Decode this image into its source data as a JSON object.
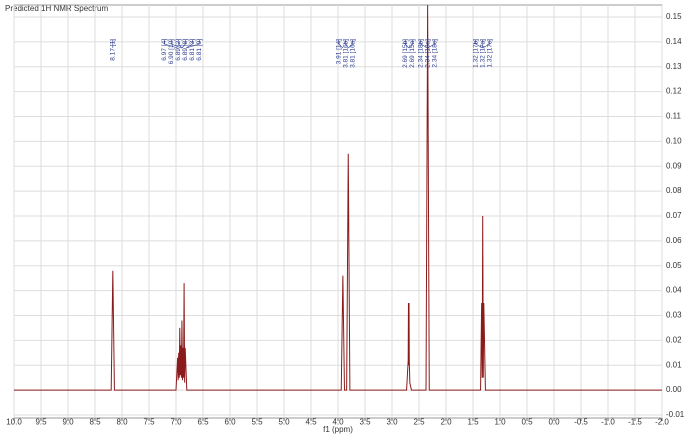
{
  "chart_data": {
    "type": "line",
    "title": "Predicted 1H NMR Spectrum",
    "xlabel": "f1 (ppm)",
    "xlim": [
      10,
      -2
    ],
    "ylim": [
      -0.0112,
      0.1548
    ],
    "xticks": [
      {
        "value": 10,
        "label": "10.0"
      },
      9.5,
      {
        "value": 9,
        "label": "9.0"
      },
      8.5,
      {
        "value": 8,
        "label": "8.0"
      },
      7.5,
      {
        "value": 7,
        "label": "7.0"
      },
      6.5,
      {
        "value": 6,
        "label": "6.0"
      },
      5.5,
      {
        "value": 5,
        "label": "5.0"
      },
      4.5,
      {
        "value": 4,
        "label": "4.0"
      },
      3.5,
      {
        "value": 3,
        "label": "3.0"
      },
      2.5,
      {
        "value": 2,
        "label": "2.0"
      },
      1.5,
      {
        "value": 1,
        "label": "1.0"
      },
      0.5,
      {
        "value": 0,
        "label": "0.0"
      },
      -0.5,
      {
        "value": -1,
        "label": "-1.0"
      },
      -1.5,
      {
        "value": -2,
        "label": "-2.0"
      }
    ],
    "yticks": [
      0.15,
      0.14,
      0.13,
      0.12,
      0.11,
      {
        "value": 0.1,
        "label": "0.10"
      },
      0.09,
      0.08,
      0.07,
      0.06,
      0.05,
      0.04,
      0.03,
      0.02,
      0.01,
      {
        "value": 0,
        "label": "0.00"
      },
      -0.01
    ],
    "grid": true,
    "series": [
      {
        "name": "spectrum",
        "color": "#8b1a1a",
        "x": [
          10,
          8.2,
          8.17,
          8.14,
          7.0,
          6.97,
          6.96,
          6.95,
          6.94,
          6.93,
          6.92,
          6.91,
          6.9,
          6.89,
          6.88,
          6.87,
          6.86,
          6.85,
          6.84,
          6.83,
          6.8,
          3.94,
          3.91,
          3.88,
          3.84,
          3.81,
          3.78,
          2.73,
          2.7,
          2.695,
          2.69,
          2.685,
          2.68,
          2.67,
          2.64,
          2.37,
          2.34,
          2.31,
          1.36,
          1.34,
          1.33,
          1.32,
          1.31,
          1.3,
          1.27,
          -2
        ],
        "values": [
          0,
          0,
          0.048,
          0,
          0,
          0.013,
          0.004,
          0.015,
          0.005,
          0.025,
          0.006,
          0.018,
          0.005,
          0.028,
          0.004,
          0.017,
          0.005,
          0.043,
          0.003,
          0.017,
          0,
          0,
          0.046,
          0,
          0,
          0.095,
          0,
          0,
          0.012,
          0.035,
          0.01,
          0.035,
          0.012,
          0.003,
          0,
          0,
          0.1548,
          0,
          0,
          0.035,
          0.005,
          0.07,
          0.005,
          0.035,
          0,
          0
        ]
      }
    ],
    "annotations": [
      {
        "label": "8.17 [1]",
        "ppm": 8.17
      },
      {
        "label": "6.97 [4]",
        "ppm": 6.97
      },
      {
        "label": "6.90 [10]",
        "ppm": 6.9
      },
      {
        "label": "6.89 [2]",
        "ppm": 6.89
      },
      {
        "label": "6.89 [8]",
        "ppm": 6.89
      },
      {
        "label": "6.81 [3]",
        "ppm": 6.81
      },
      {
        "label": "6.81 [9]",
        "ppm": 6.81
      },
      {
        "label": "3.91 [14]",
        "ppm": 3.91
      },
      {
        "label": "3.81 [16b]",
        "ppm": 3.81
      },
      {
        "label": "3.81 [16a]",
        "ppm": 3.81
      },
      {
        "label": "2.69 [15b]",
        "ppm": 2.69
      },
      {
        "label": "2.69 [15a]",
        "ppm": 2.69
      },
      {
        "label": "2.34 [18b]",
        "ppm": 2.34
      },
      {
        "label": "2.34 [18a]",
        "ppm": 2.34
      },
      {
        "label": "2.34 [18c]",
        "ppm": 2.34
      },
      {
        "label": "1.32 [17b]",
        "ppm": 1.32
      },
      {
        "label": "1.32 [17a]",
        "ppm": 1.32
      },
      {
        "label": "1.32 [17c]",
        "ppm": 1.32
      }
    ]
  }
}
